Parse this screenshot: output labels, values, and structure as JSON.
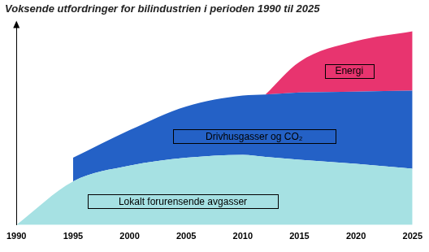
{
  "chart_data": {
    "type": "area",
    "title": "Voksende utfordringer for bilindustrien i perioden 1990 til 2025",
    "x": [
      1990,
      1995,
      2000,
      2005,
      2010,
      2012,
      2015,
      2020,
      2025
    ],
    "series": [
      {
        "name": "Lokalt forurensende avgasser",
        "color": "#a6e1e3",
        "values": [
          0,
          22,
          30,
          34,
          35.5,
          34.5,
          33,
          31,
          28.5
        ]
      },
      {
        "name": "Drivhusgasser og CO₂",
        "color": "#2461c6",
        "values": [
          null,
          12,
          18,
          26,
          30,
          31.5,
          34,
          36.5,
          39.5
        ]
      },
      {
        "name": "Energi",
        "color": "#e8346f",
        "values": [
          null,
          null,
          null,
          null,
          null,
          0,
          15.5,
          25.5,
          30
        ]
      }
    ],
    "xlim": [
      1990,
      2025
    ],
    "xticks": [
      1990,
      1995,
      2000,
      2005,
      2010,
      2015,
      2020,
      2025
    ],
    "ylim": [
      0,
      100
    ],
    "stacked": true,
    "grid": false,
    "tick_labels": "x"
  }
}
